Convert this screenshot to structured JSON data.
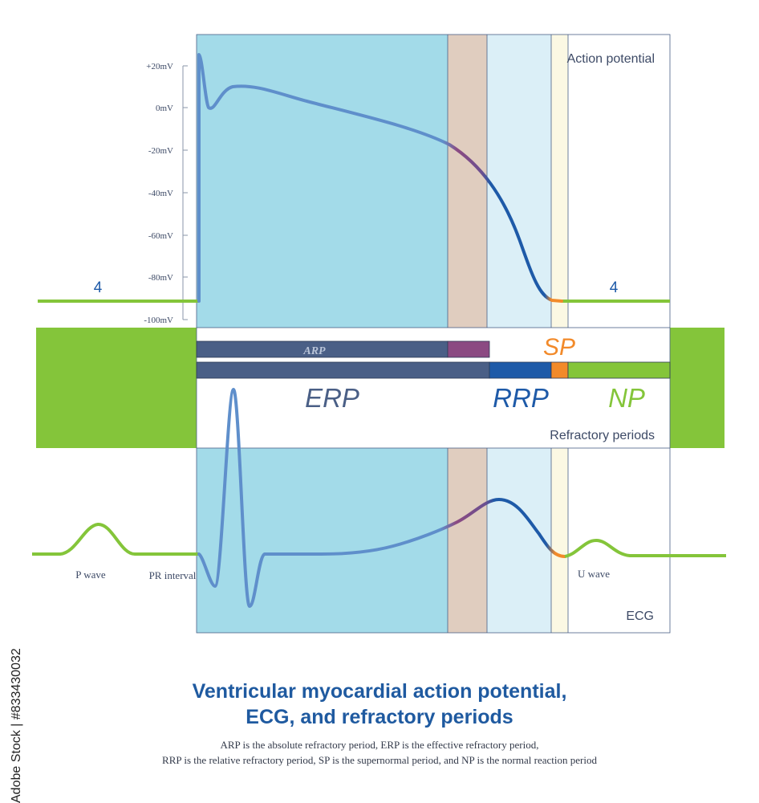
{
  "action_potential": {
    "panel_label": "Action potential",
    "phase_label_left": "4",
    "phase_label_right": "4",
    "y_ticks": [
      "+20mV",
      "0mV",
      "-20mV",
      "-40mV",
      "-60mV",
      "-80mV",
      "-100mV"
    ]
  },
  "refractory": {
    "panel_label": "Refractory periods",
    "arp": "ARP",
    "erp": "ERP",
    "rrp": "RRP",
    "sp": "SP",
    "np": "NP"
  },
  "ecg": {
    "panel_label": "ECG",
    "p_wave": "P wave",
    "pr_interval": "PR interval",
    "u_wave": "U wave"
  },
  "title_line1": "Ventricular myocardial action potential,",
  "title_line2": "ECG, and refractory periods",
  "caption_line1": "ARP is the absolute refractory period, ERP is the effective refractory period,",
  "caption_line2": "RRP is the relative refractory period, SP is the supernormal period, and NP is the normal reaction period",
  "side_text": "Adobe Stock | #833430032",
  "colors": {
    "erp_zone": "#a3dbe9",
    "transition_zone": "#e0cdbf",
    "rrp_zone": "#dbeff7",
    "sp_zone": "#fbf8e3",
    "green": "#84c53a",
    "navy_bar": "#4a5f86",
    "purple": "#8b4a82",
    "blue": "#1e5aa8",
    "orange": "#f28a2a",
    "trace_light": "#5f8fcb",
    "text_dark": "#3d4a66"
  }
}
